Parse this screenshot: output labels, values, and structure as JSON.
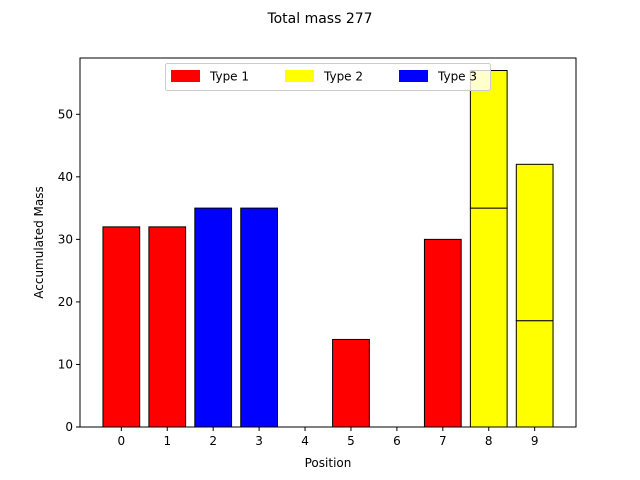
{
  "chart_data": {
    "type": "bar",
    "title": "Total mass 277",
    "xlabel": "Position",
    "ylabel": "Accumulated Mass",
    "categories": [
      "0",
      "1",
      "2",
      "3",
      "4",
      "5",
      "6",
      "7",
      "8",
      "9"
    ],
    "x": [
      0,
      1,
      2,
      3,
      4,
      5,
      6,
      7,
      8,
      9
    ],
    "ylim": [
      0,
      59
    ],
    "yticks": [
      0,
      10,
      20,
      30,
      40,
      50
    ],
    "grid": false,
    "legend_position": "top-center",
    "legend": [
      {
        "label": "Type 1",
        "color": "#ff0000"
      },
      {
        "label": "Type 2",
        "color": "#ffff00"
      },
      {
        "label": "Type 3",
        "color": "#0000ff"
      }
    ],
    "stacks": [
      {
        "x": 0,
        "segments": [
          {
            "value": 32,
            "color": "#ff0000"
          }
        ]
      },
      {
        "x": 1,
        "segments": [
          {
            "value": 32,
            "color": "#ff0000"
          }
        ]
      },
      {
        "x": 2,
        "segments": [
          {
            "value": 35,
            "color": "#0000ff"
          }
        ]
      },
      {
        "x": 3,
        "segments": [
          {
            "value": 35,
            "color": "#0000ff"
          }
        ]
      },
      {
        "x": 4,
        "segments": [
          {
            "value": 0,
            "color": "#ff0000"
          }
        ]
      },
      {
        "x": 5,
        "segments": [
          {
            "value": 14,
            "color": "#ff0000"
          }
        ]
      },
      {
        "x": 6,
        "segments": [
          {
            "value": 0,
            "color": "#ff0000"
          }
        ]
      },
      {
        "x": 7,
        "segments": [
          {
            "value": 30,
            "color": "#ff0000"
          }
        ]
      },
      {
        "x": 8,
        "segments": [
          {
            "value": 35,
            "color": "#ffff00"
          },
          {
            "value": 22,
            "color": "#ffff00"
          }
        ]
      },
      {
        "x": 9,
        "segments": [
          {
            "value": 17,
            "color": "#ffff00"
          },
          {
            "value": 25,
            "color": "#ffff00"
          }
        ]
      }
    ]
  }
}
